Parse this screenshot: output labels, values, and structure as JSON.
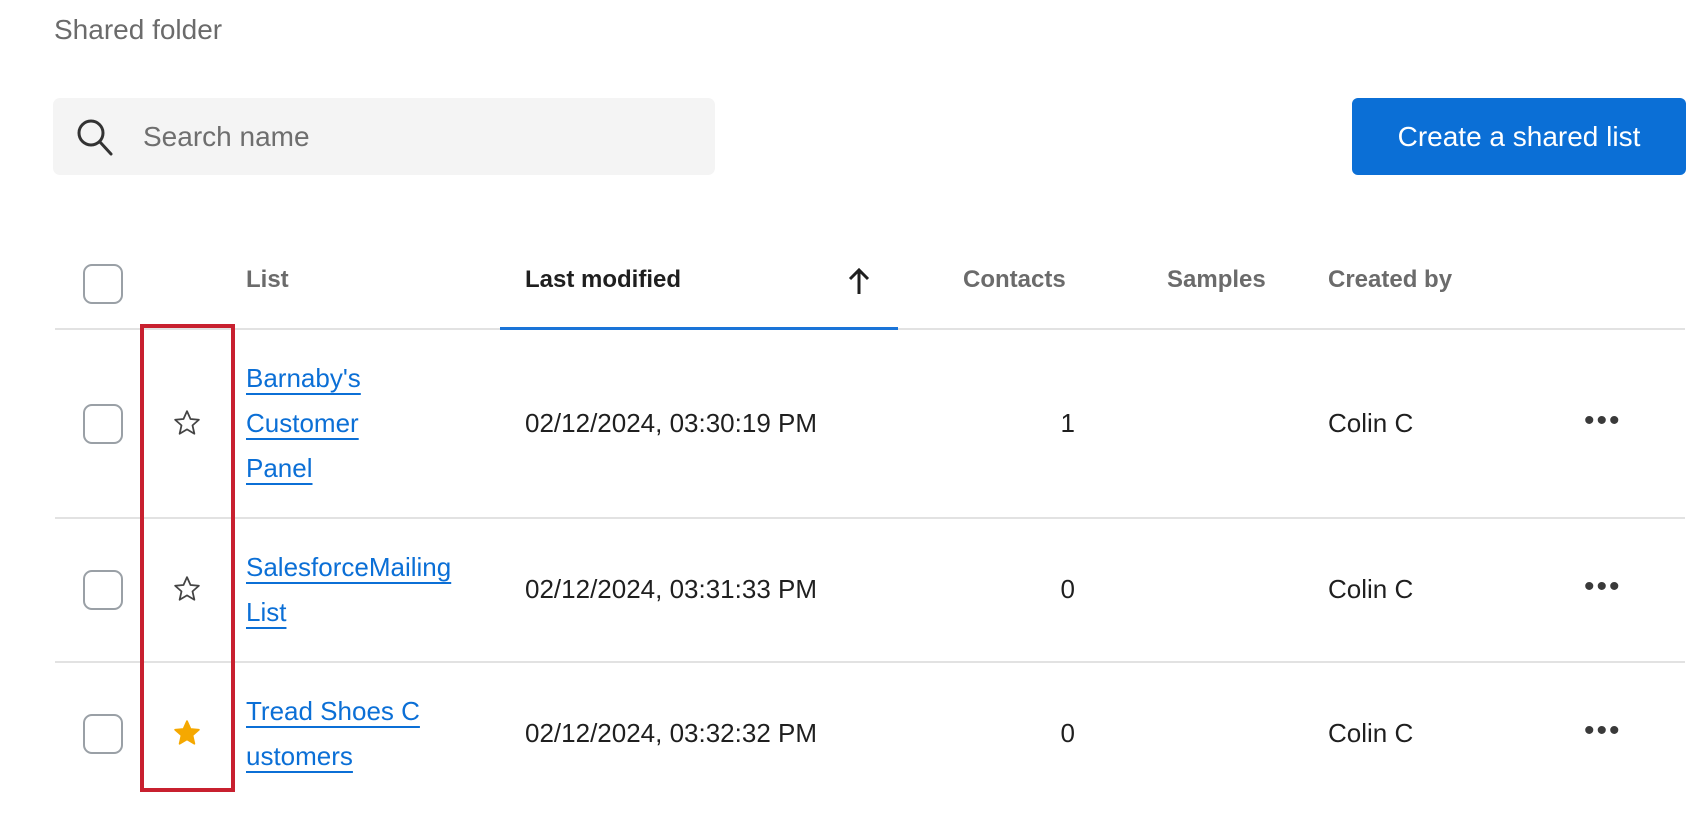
{
  "folder_title": "Shared folder",
  "search": {
    "placeholder": "Search name",
    "value": "",
    "icon": "search-icon"
  },
  "create_button": "Create a shared list",
  "columns": {
    "list": "List",
    "last_modified": "Last modified",
    "contacts": "Contacts",
    "samples": "Samples",
    "created_by": "Created by"
  },
  "sort": {
    "column": "Last modified",
    "direction": "ascending",
    "icon": "arrow-up-icon"
  },
  "colors": {
    "accent": "#0b6fd6",
    "favorite": "#f5a800",
    "highlight": "#c8202f"
  },
  "rows": [
    {
      "name": "Barnaby's Customer Panel",
      "last_modified": "02/12/2024, 03:30:19 PM",
      "contacts": "1",
      "samples": "",
      "created_by": "Colin C",
      "favorite": false,
      "more": "•••"
    },
    {
      "name": "SalesforceMailingList",
      "last_modified": "02/12/2024, 03:31:33 PM",
      "contacts": "0",
      "samples": "",
      "created_by": "Colin C",
      "favorite": false,
      "more": "•••"
    },
    {
      "name": "Tread Shoes Customers",
      "last_modified": "02/12/2024, 03:32:32 PM",
      "contacts": "0",
      "samples": "",
      "created_by": "Colin C",
      "favorite": true,
      "more": "•••"
    }
  ]
}
